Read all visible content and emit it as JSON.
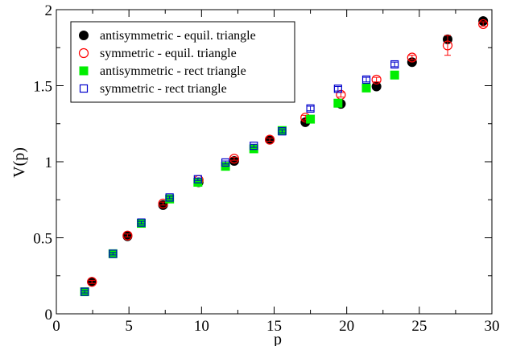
{
  "chart_data": {
    "type": "scatter",
    "title": "",
    "xlabel": "p",
    "ylabel": "V(p)",
    "xlim": [
      0,
      30
    ],
    "ylim": [
      0,
      2
    ],
    "xticks": [
      0,
      5,
      10,
      15,
      20,
      25,
      30
    ],
    "yticks": [
      0,
      0.5,
      1,
      1.5,
      2
    ],
    "xtick_labels": [
      "0",
      "5",
      "10",
      "15",
      "20",
      "25",
      "30"
    ],
    "ytick_labels": [
      "0",
      "0.5",
      "1",
      "1.5",
      "2"
    ],
    "grid": false,
    "legend_position": "top-left",
    "series": [
      {
        "name": "antisymmetric - equil. triangle",
        "marker": "filled-circle",
        "color": "#000000",
        "points": [
          {
            "x": 2.45,
            "y": 0.21
          },
          {
            "x": 4.9,
            "y": 0.51
          },
          {
            "x": 7.35,
            "y": 0.715
          },
          {
            "x": 9.8,
            "y": 0.865
          },
          {
            "x": 12.25,
            "y": 1.005
          },
          {
            "x": 14.7,
            "y": 1.145
          },
          {
            "x": 17.15,
            "y": 1.26
          },
          {
            "x": 19.6,
            "y": 1.38
          },
          {
            "x": 22.05,
            "y": 1.495
          },
          {
            "x": 24.5,
            "y": 1.655
          },
          {
            "x": 26.95,
            "y": 1.805
          },
          {
            "x": 29.4,
            "y": 1.925
          }
        ]
      },
      {
        "name": "symmetric - equil. triangle",
        "marker": "open-circle",
        "color": "#ff0000",
        "points": [
          {
            "x": 2.45,
            "y": 0.21,
            "err": 0.01
          },
          {
            "x": 4.9,
            "y": 0.515,
            "err": 0.01
          },
          {
            "x": 7.35,
            "y": 0.725,
            "err": 0.01
          },
          {
            "x": 9.8,
            "y": 0.88,
            "err": 0.01
          },
          {
            "x": 12.25,
            "y": 1.02,
            "err": 0.01
          },
          {
            "x": 14.7,
            "y": 1.145,
            "err": 0.01
          },
          {
            "x": 17.15,
            "y": 1.29,
            "err": 0.015
          },
          {
            "x": 19.6,
            "y": 1.44,
            "err": 0.015
          },
          {
            "x": 22.05,
            "y": 1.54,
            "err": 0.015
          },
          {
            "x": 24.5,
            "y": 1.685,
            "err": 0.015
          },
          {
            "x": 26.95,
            "y": 1.765,
            "err": 0.065
          },
          {
            "x": 29.4,
            "y": 1.905,
            "err": 0.015
          }
        ]
      },
      {
        "name": "antisymmetric - rect triangle",
        "marker": "filled-square",
        "color": "#00ee00",
        "points": [
          {
            "x": 1.95,
            "y": 0.145
          },
          {
            "x": 3.9,
            "y": 0.395
          },
          {
            "x": 5.85,
            "y": 0.595
          },
          {
            "x": 7.8,
            "y": 0.755
          },
          {
            "x": 9.75,
            "y": 0.865
          },
          {
            "x": 11.65,
            "y": 0.97
          },
          {
            "x": 13.6,
            "y": 1.085
          },
          {
            "x": 15.55,
            "y": 1.205
          },
          {
            "x": 17.5,
            "y": 1.28
          },
          {
            "x": 19.4,
            "y": 1.385
          },
          {
            "x": 21.35,
            "y": 1.485
          },
          {
            "x": 23.3,
            "y": 1.57
          }
        ]
      },
      {
        "name": "symmetric - rect triangle",
        "marker": "open-square",
        "color": "#0000cc",
        "points": [
          {
            "x": 1.95,
            "y": 0.145,
            "err": 0.008
          },
          {
            "x": 3.9,
            "y": 0.395,
            "err": 0.008
          },
          {
            "x": 5.85,
            "y": 0.6,
            "err": 0.008
          },
          {
            "x": 7.8,
            "y": 0.765,
            "err": 0.008
          },
          {
            "x": 9.75,
            "y": 0.885,
            "err": 0.008
          },
          {
            "x": 11.65,
            "y": 0.995,
            "err": 0.01
          },
          {
            "x": 13.6,
            "y": 1.105,
            "err": 0.01
          },
          {
            "x": 15.55,
            "y": 1.2,
            "err": 0.01
          },
          {
            "x": 17.5,
            "y": 1.35,
            "err": 0.015
          },
          {
            "x": 19.4,
            "y": 1.48,
            "err": 0.015
          },
          {
            "x": 21.35,
            "y": 1.54,
            "err": 0.015
          },
          {
            "x": 23.3,
            "y": 1.64,
            "err": 0.015
          }
        ]
      }
    ]
  }
}
